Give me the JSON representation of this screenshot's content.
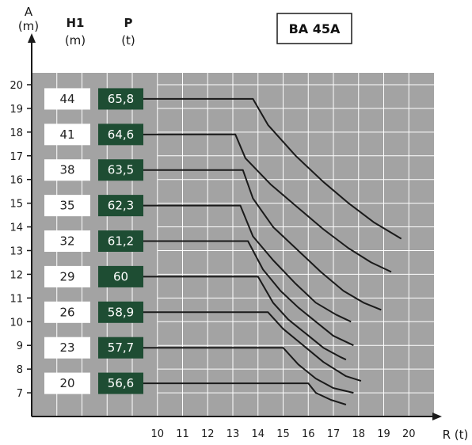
{
  "chart_data": {
    "type": "line",
    "title": "BA 45A",
    "ylabel_top": "A",
    "ylabel_unit": "(m)",
    "xlabel": "R (t)",
    "col_h1_label": "H1",
    "col_h1_unit": "(m)",
    "col_p_label": "P",
    "col_p_unit": "(t)",
    "xlim": [
      5,
      21
    ],
    "ylim": [
      6,
      20.5
    ],
    "x_ticks": [
      10,
      11,
      12,
      13,
      14,
      15,
      16,
      17,
      18,
      19,
      20
    ],
    "y_ticks": [
      7,
      8,
      9,
      10,
      11,
      12,
      13,
      14,
      15,
      16,
      17,
      18,
      19,
      20
    ],
    "grid": true,
    "table": [
      {
        "h1": "44",
        "p": "65,8",
        "a": 19.4
      },
      {
        "h1": "41",
        "p": "64,6",
        "a": 17.9
      },
      {
        "h1": "38",
        "p": "63,5",
        "a": 16.4
      },
      {
        "h1": "35",
        "p": "62,3",
        "a": 14.9
      },
      {
        "h1": "32",
        "p": "61,2",
        "a": 13.4
      },
      {
        "h1": "29",
        "p": "60",
        "a": 11.9
      },
      {
        "h1": "26",
        "p": "58,9",
        "a": 10.4
      },
      {
        "h1": "23",
        "p": "57,7",
        "a": 8.9
      },
      {
        "h1": "20",
        "p": "56,6",
        "a": 7.4
      }
    ],
    "series": [
      {
        "values": [
          [
            10,
            19.4
          ],
          [
            13.8,
            19.4
          ],
          [
            14.4,
            18.3
          ],
          [
            15.5,
            17.0
          ],
          [
            16.6,
            15.9
          ],
          [
            17.6,
            15.0
          ],
          [
            18.6,
            14.2
          ],
          [
            19.7,
            13.5
          ]
        ]
      },
      {
        "values": [
          [
            10,
            17.9
          ],
          [
            13.1,
            17.9
          ],
          [
            13.5,
            16.9
          ],
          [
            14.5,
            15.8
          ],
          [
            15.6,
            14.8
          ],
          [
            16.6,
            13.9
          ],
          [
            17.6,
            13.1
          ],
          [
            18.5,
            12.5
          ],
          [
            19.3,
            12.1
          ]
        ]
      },
      {
        "values": [
          [
            10,
            16.4
          ],
          [
            13.4,
            16.4
          ],
          [
            13.8,
            15.2
          ],
          [
            14.6,
            14.0
          ],
          [
            15.5,
            13.1
          ],
          [
            16.5,
            12.1
          ],
          [
            17.4,
            11.3
          ],
          [
            18.2,
            10.8
          ],
          [
            18.9,
            10.5
          ]
        ]
      },
      {
        "values": [
          [
            10,
            14.9
          ],
          [
            13.3,
            14.9
          ],
          [
            13.8,
            13.6
          ],
          [
            14.6,
            12.6
          ],
          [
            15.5,
            11.6
          ],
          [
            16.3,
            10.8
          ],
          [
            17.1,
            10.3
          ],
          [
            17.7,
            10.0
          ]
        ]
      },
      {
        "values": [
          [
            10,
            13.4
          ],
          [
            13.6,
            13.4
          ],
          [
            14.2,
            12.2
          ],
          [
            14.9,
            11.3
          ],
          [
            15.6,
            10.6
          ],
          [
            16.3,
            10.0
          ],
          [
            17.0,
            9.4
          ],
          [
            17.8,
            9.0
          ]
        ]
      },
      {
        "values": [
          [
            10,
            11.9
          ],
          [
            14.0,
            11.9
          ],
          [
            14.6,
            10.8
          ],
          [
            15.2,
            10.1
          ],
          [
            15.9,
            9.5
          ],
          [
            16.6,
            8.9
          ],
          [
            17.3,
            8.5
          ],
          [
            17.5,
            8.4
          ]
        ]
      },
      {
        "values": [
          [
            10,
            10.4
          ],
          [
            14.4,
            10.4
          ],
          [
            15.0,
            9.7
          ],
          [
            15.8,
            9.0
          ],
          [
            16.6,
            8.3
          ],
          [
            17.5,
            7.7
          ],
          [
            18.1,
            7.5
          ]
        ]
      },
      {
        "values": [
          [
            10,
            8.9
          ],
          [
            15.0,
            8.9
          ],
          [
            15.6,
            8.2
          ],
          [
            16.3,
            7.6
          ],
          [
            17.0,
            7.2
          ],
          [
            17.8,
            7.0
          ]
        ]
      },
      {
        "values": [
          [
            10,
            7.4
          ],
          [
            16.0,
            7.4
          ],
          [
            16.3,
            7.0
          ],
          [
            16.9,
            6.7
          ],
          [
            17.5,
            6.5
          ]
        ]
      }
    ]
  },
  "colors": {
    "grid_bg": "#a3a3a3",
    "grid_line": "#ffffff",
    "p_cell": "#1e4d33",
    "h1_cell": "#ffffff",
    "curve": "#1a1a1a"
  }
}
